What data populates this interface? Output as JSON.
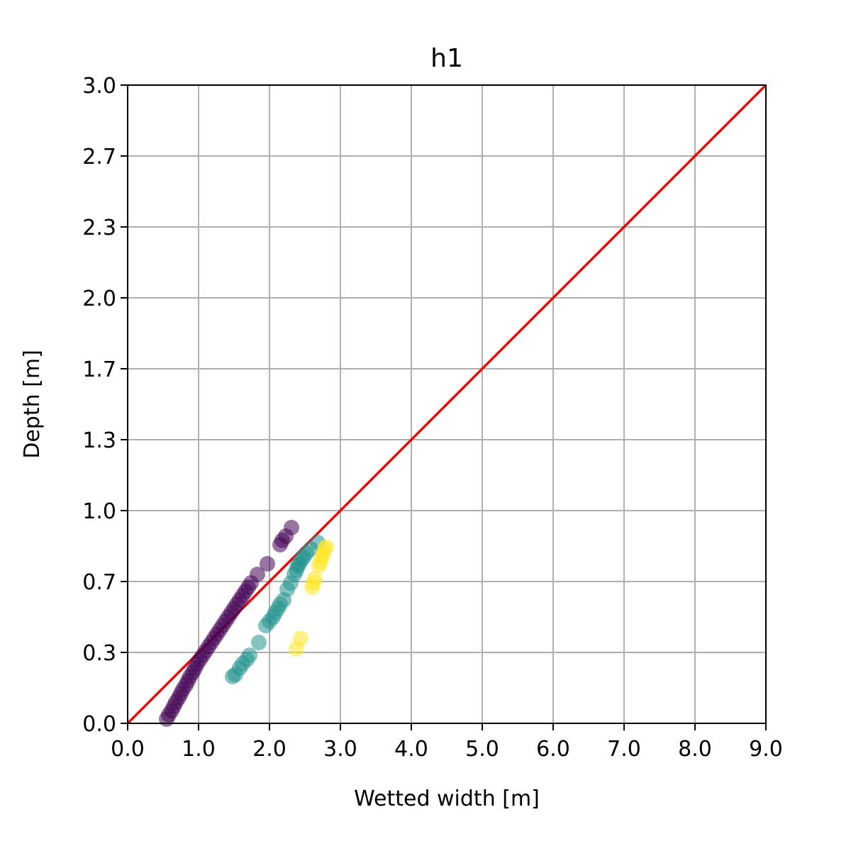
{
  "chart_data": {
    "type": "scatter",
    "title": "h1",
    "xlabel": "Wetted width [m]",
    "ylabel": "Depth [m]",
    "xlim": [
      0,
      9
    ],
    "ylim": [
      0,
      3
    ],
    "xticks": [
      "0.0",
      "1.0",
      "2.0",
      "3.0",
      "4.0",
      "5.0",
      "6.0",
      "7.0",
      "8.0",
      "9.0"
    ],
    "yticks": [
      "0.0",
      "0.3",
      "0.7",
      "1.0",
      "1.3",
      "1.7",
      "2.0",
      "2.3",
      "2.7",
      "3.0"
    ],
    "grid": true,
    "reference_line": {
      "color": "#ff0000",
      "x": [
        0,
        9
      ],
      "y": [
        0,
        3
      ]
    },
    "series": [
      {
        "color": "#440154",
        "points": [
          [
            0.55,
            0.02
          ],
          [
            0.58,
            0.04
          ],
          [
            0.62,
            0.06
          ],
          [
            0.65,
            0.08
          ],
          [
            0.68,
            0.1
          ],
          [
            0.72,
            0.12
          ],
          [
            0.75,
            0.14
          ],
          [
            0.78,
            0.16
          ],
          [
            0.82,
            0.18
          ],
          [
            0.85,
            0.2
          ],
          [
            0.88,
            0.22
          ],
          [
            0.92,
            0.24
          ],
          [
            0.95,
            0.26
          ],
          [
            0.98,
            0.28
          ],
          [
            1.02,
            0.3
          ],
          [
            1.06,
            0.32
          ],
          [
            1.1,
            0.34
          ],
          [
            1.14,
            0.36
          ],
          [
            1.18,
            0.38
          ],
          [
            1.22,
            0.4
          ],
          [
            1.26,
            0.42
          ],
          [
            1.3,
            0.44
          ],
          [
            1.34,
            0.46
          ],
          [
            1.38,
            0.48
          ],
          [
            1.42,
            0.5
          ],
          [
            1.46,
            0.52
          ],
          [
            1.5,
            0.54
          ],
          [
            1.54,
            0.56
          ],
          [
            1.58,
            0.58
          ],
          [
            1.62,
            0.6
          ],
          [
            1.66,
            0.62
          ],
          [
            1.7,
            0.64
          ],
          [
            1.74,
            0.66
          ],
          [
            1.83,
            0.7
          ],
          [
            1.97,
            0.75
          ],
          [
            2.15,
            0.84
          ],
          [
            2.18,
            0.86
          ],
          [
            2.23,
            0.88
          ],
          [
            2.31,
            0.92
          ]
        ]
      },
      {
        "color": "#21918c",
        "points": [
          [
            1.48,
            0.22
          ],
          [
            1.52,
            0.23
          ],
          [
            1.58,
            0.26
          ],
          [
            1.62,
            0.28
          ],
          [
            1.68,
            0.3
          ],
          [
            1.72,
            0.32
          ],
          [
            1.85,
            0.38
          ],
          [
            1.95,
            0.46
          ],
          [
            2.0,
            0.48
          ],
          [
            2.05,
            0.5
          ],
          [
            2.08,
            0.52
          ],
          [
            2.12,
            0.54
          ],
          [
            2.15,
            0.56
          ],
          [
            2.2,
            0.58
          ],
          [
            2.25,
            0.63
          ],
          [
            2.3,
            0.66
          ],
          [
            2.35,
            0.7
          ],
          [
            2.38,
            0.72
          ],
          [
            2.4,
            0.74
          ],
          [
            2.42,
            0.75
          ],
          [
            2.45,
            0.77
          ],
          [
            2.48,
            0.78
          ],
          [
            2.52,
            0.8
          ],
          [
            2.58,
            0.82
          ],
          [
            2.68,
            0.85
          ]
        ]
      },
      {
        "color": "#fde725",
        "points": [
          [
            2.38,
            0.35
          ],
          [
            2.44,
            0.4
          ],
          [
            2.6,
            0.64
          ],
          [
            2.62,
            0.66
          ],
          [
            2.64,
            0.68
          ],
          [
            2.7,
            0.74
          ],
          [
            2.72,
            0.76
          ],
          [
            2.74,
            0.78
          ],
          [
            2.76,
            0.8
          ],
          [
            2.78,
            0.82
          ],
          [
            2.8,
            0.83
          ]
        ]
      }
    ]
  }
}
